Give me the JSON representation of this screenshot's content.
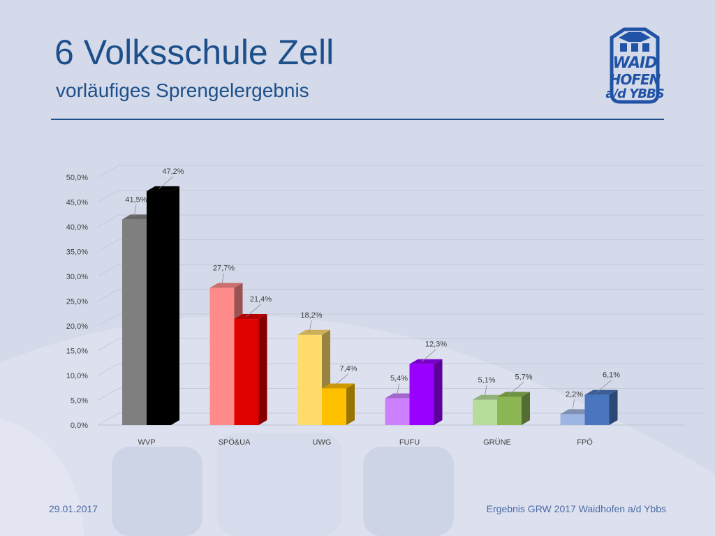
{
  "slide": {
    "title": "6 Volksschule Zell",
    "subtitle": "vorläufiges Sprengelergebnis"
  },
  "logo": {
    "line1": "WAID",
    "line2": "HOFEN",
    "line3": "a/d YBBS",
    "color": "#2052a5"
  },
  "footer": {
    "date": "29.01.2017",
    "source": "Ergebnis GRW 2017 Waidhofen a/d Ybbs"
  },
  "colors": {
    "background": "#d4dae9",
    "title": "#1d4f8a"
  },
  "chart_data": {
    "type": "bar",
    "style": "3d-clustered-column",
    "categories": [
      "WVP",
      "SPÖ&UA",
      "UWG",
      "FUFU",
      "GRÜNE",
      "FPÖ"
    ],
    "series": [
      {
        "values": [
          41.5,
          27.7,
          18.2,
          5.4,
          5.1,
          2.2
        ],
        "labels": [
          "41,5%",
          "27,7%",
          "18,2%",
          "5,4%",
          "5,1%",
          "2,2%"
        ],
        "colors": [
          "#7f7f7f",
          "#ff8a8a",
          "#ffdb6b",
          "#cc80ff",
          "#b7dd9a",
          "#9db5e2"
        ]
      },
      {
        "values": [
          47.2,
          21.4,
          7.4,
          12.3,
          5.7,
          6.1
        ],
        "labels": [
          "47,2%",
          "21,4%",
          "7,4%",
          "12,3%",
          "5,7%",
          "6,1%"
        ],
        "colors": [
          "#000000",
          "#e00000",
          "#ffc000",
          "#9900ff",
          "#8bb653",
          "#4a76bf"
        ]
      }
    ],
    "y_ticks": [
      "0,0%",
      "5,0%",
      "10,0%",
      "15,0%",
      "20,0%",
      "25,0%",
      "30,0%",
      "35,0%",
      "40,0%",
      "45,0%",
      "50,0%"
    ],
    "ylim": [
      0,
      50
    ],
    "grid": true,
    "legend": "none"
  }
}
